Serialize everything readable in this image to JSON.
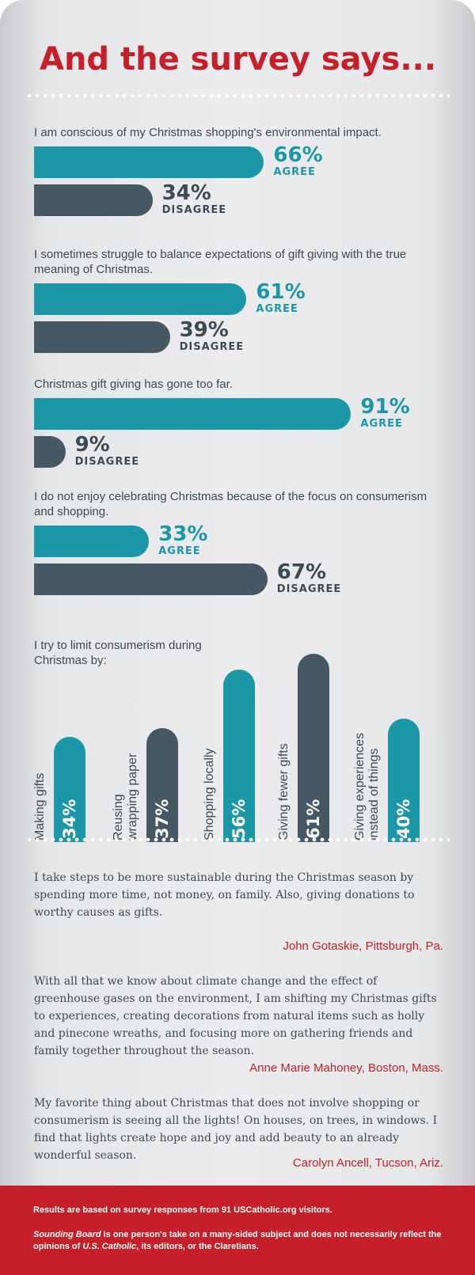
{
  "header": {
    "title": "And the survey says..."
  },
  "colors": {
    "agree": "#1b97a7",
    "disagree": "#455864",
    "accent_red": "#c5202a"
  },
  "chart_data": [
    {
      "type": "bar",
      "title": "I am conscious of my Christmas shopping's environmental impact.",
      "categories": [
        "AGREE",
        "DISAGREE"
      ],
      "values": [
        66,
        34
      ],
      "value_labels": [
        "66%",
        "34%"
      ]
    },
    {
      "type": "bar",
      "title": "I sometimes struggle to balance expectations of gift giving with the true meaning of Christmas.",
      "categories": [
        "AGREE",
        "DISAGREE"
      ],
      "values": [
        61,
        39
      ],
      "value_labels": [
        "61%",
        "39%"
      ]
    },
    {
      "type": "bar",
      "title": "Christmas gift giving has gone too far.",
      "categories": [
        "AGREE",
        "DISAGREE"
      ],
      "values": [
        91,
        9
      ],
      "value_labels": [
        "91%",
        "9%"
      ]
    },
    {
      "type": "bar",
      "title": "I do not enjoy celebrating Christmas because of the focus on consumerism and shopping.",
      "categories": [
        "AGREE",
        "DISAGREE"
      ],
      "values": [
        33,
        67
      ],
      "value_labels": [
        "33%",
        "67%"
      ]
    },
    {
      "type": "bar",
      "title": "I try to limit consumerism during Christmas by:",
      "categories": [
        "Making gifts",
        "Reusing wrapping paper",
        "Shopping locally",
        "Giving fewer gifts",
        "Giving experiences instead of things"
      ],
      "category_lines": [
        [
          "Making gifts"
        ],
        [
          "Reusing",
          "wrapping paper"
        ],
        [
          "Shopping locally"
        ],
        [
          "Giving fewer gifts"
        ],
        [
          "Giving experiences",
          "instead of things"
        ]
      ],
      "values": [
        34,
        37,
        56,
        61,
        40
      ],
      "value_labels": [
        "34%",
        "37%",
        "56%",
        "61%",
        "40%"
      ]
    }
  ],
  "quotes": [
    {
      "text": "I take steps to be more sustainable during the Christmas season by spending more time, not money, on family. Also, giving donations to worthy causes as gifts.",
      "author": "John Gotaskie, Pittsburgh, Pa."
    },
    {
      "text": "With all that we know about climate change and the effect of greenhouse gases on the environment, I am shifting my Christmas gifts to experiences, creating decorations from natural items such as holly and pinecone wreaths, and focusing more on gathering friends and family together throughout the season.",
      "author": "Anne Marie Mahoney, Boston, Mass."
    },
    {
      "text": "My favorite thing about Christmas that does not involve shopping or consumerism is seeing all the lights! On houses, on trees, in windows. I find that lights create hope and joy and add beauty to an already wonderful season.",
      "author": "Carolyn Ancell, Tucson, Ariz."
    }
  ],
  "footer": {
    "survey_note": "Results are based on survey responses from 91 USCatholic.org visitors.",
    "disclaimer_lead": "Sounding Board",
    "disclaimer_mid": " is one person's take on a many-sided subject and does not necessarily reflect the opinions of ",
    "disclaimer_pub": "U.S. Catholic",
    "disclaimer_tail": ", its editors, or the Claretians."
  }
}
